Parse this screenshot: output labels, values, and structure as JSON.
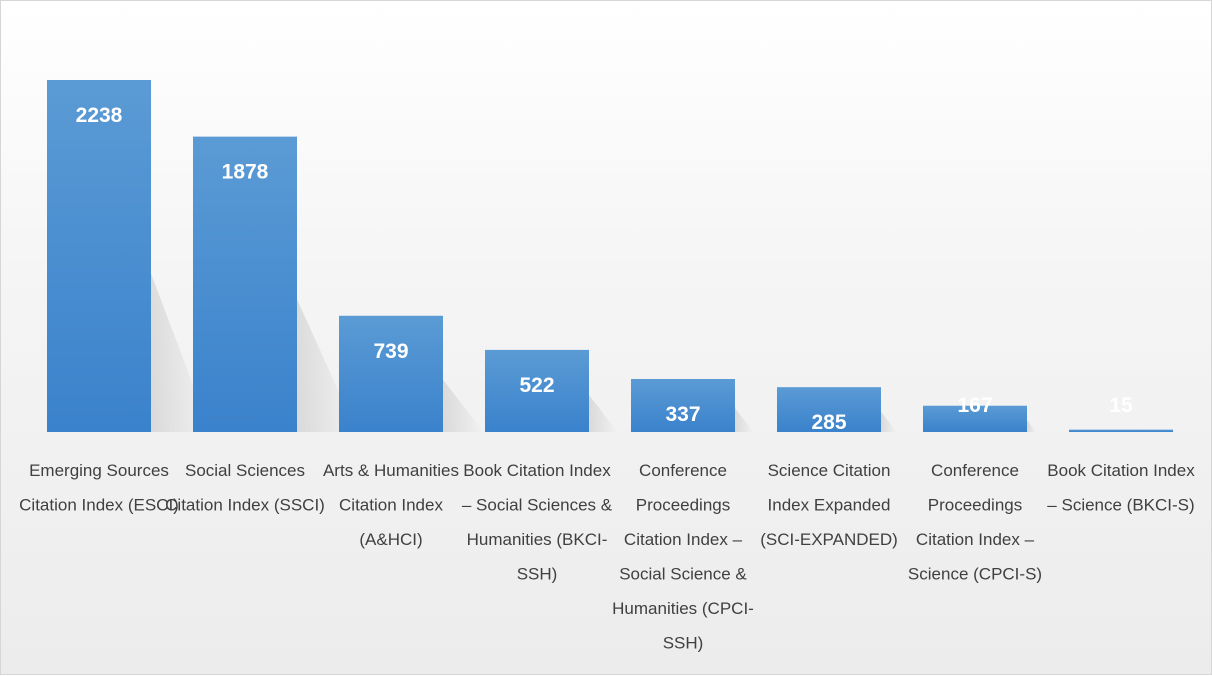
{
  "chart_data": {
    "type": "bar",
    "categories": [
      "Emerging Sources Citation Index (ESCI)",
      "Social Sciences Citation Index (SSCI)",
      "Arts & Humanities Citation Index (A&HCI)",
      "Book Citation Index – Social Sciences & Humanities (BKCI-SSH)",
      "Conference Proceedings Citation Index – Social Science & Humanities (CPCI-SSH)",
      "Science Citation Index Expanded (SCI-EXPANDED)",
      "Conference Proceedings Citation Index – Science (CPCI-S)",
      "Book Citation Index – Science (BKCI-S)"
    ],
    "category_lines": [
      [
        "Emerging Sources",
        "Citation Index (ESCI)"
      ],
      [
        "Social Sciences",
        "Citation Index (SSCI)"
      ],
      [
        "Arts & Humanities",
        "Citation Index",
        "(A&HCI)"
      ],
      [
        "Book Citation Index",
        "– Social Sciences &",
        "Humanities (BKCI-",
        "SSH)"
      ],
      [
        "Conference",
        "Proceedings",
        "Citation Index –",
        "Social Science &",
        "Humanities (CPCI-",
        "SSH)"
      ],
      [
        "Science Citation",
        "Index Expanded",
        "(SCI-EXPANDED)"
      ],
      [
        "Conference",
        "Proceedings",
        "Citation Index –",
        "Science (CPCI-S)"
      ],
      [
        "Book Citation Index",
        "– Science (BKCI-S)"
      ]
    ],
    "values": [
      2238,
      1878,
      739,
      522,
      337,
      285,
      167,
      15
    ],
    "data_labels": [
      "2238",
      "1878",
      "739",
      "522",
      "337",
      "285",
      "167",
      "15"
    ],
    "title": "",
    "xlabel": "",
    "ylabel": "",
    "ylim": [
      0,
      2238
    ],
    "grid": false,
    "legend": "none",
    "colors": {
      "bar_top": "#5b9bd5",
      "bar_bottom": "#3a82cc",
      "label": "#404040",
      "value_label": "#ffffff"
    }
  }
}
